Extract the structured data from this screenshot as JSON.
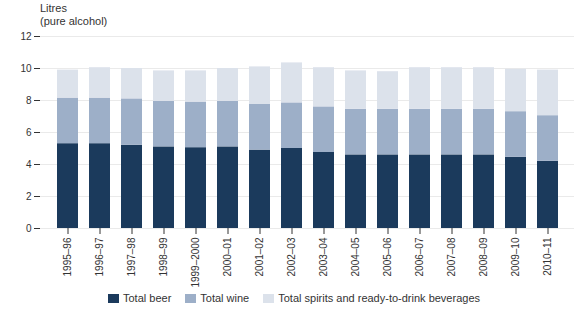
{
  "chart_data": {
    "type": "bar",
    "stacked": true,
    "grid": true,
    "legend": "bottom",
    "ylabel": [
      "Litres",
      "(pure alcohol)"
    ],
    "categories": [
      "1995–96",
      "1996–97",
      "1997–98",
      "1998–99",
      "1999–2000",
      "2000–01",
      "2001–02",
      "2002–03",
      "2003–04",
      "2004–05",
      "2005–06",
      "2006–07",
      "2007–08",
      "2008–09",
      "2009–10",
      "2010–11"
    ],
    "series": [
      {
        "name": "Total beer",
        "color": "#1b3a5c",
        "values": [
          5.3,
          5.3,
          5.2,
          5.1,
          5.05,
          5.1,
          4.9,
          5.0,
          4.75,
          4.6,
          4.6,
          4.6,
          4.6,
          4.6,
          4.45,
          4.2
        ]
      },
      {
        "name": "Total wine",
        "color": "#9dafc8",
        "values": [
          2.85,
          2.85,
          2.9,
          2.85,
          2.85,
          2.85,
          2.85,
          2.85,
          2.85,
          2.85,
          2.85,
          2.85,
          2.85,
          2.85,
          2.85,
          2.85
        ]
      },
      {
        "name": "Total spirits and ready-to-drink beverages",
        "color": "#dce2eb",
        "values": [
          1.75,
          1.9,
          1.9,
          1.9,
          1.95,
          2.05,
          2.35,
          2.5,
          2.45,
          2.4,
          2.35,
          2.6,
          2.6,
          2.6,
          2.65,
          2.85
        ]
      }
    ],
    "ylim": [
      0,
      12
    ],
    "yticks": [
      0,
      2,
      4,
      6,
      8,
      10,
      12
    ]
  }
}
